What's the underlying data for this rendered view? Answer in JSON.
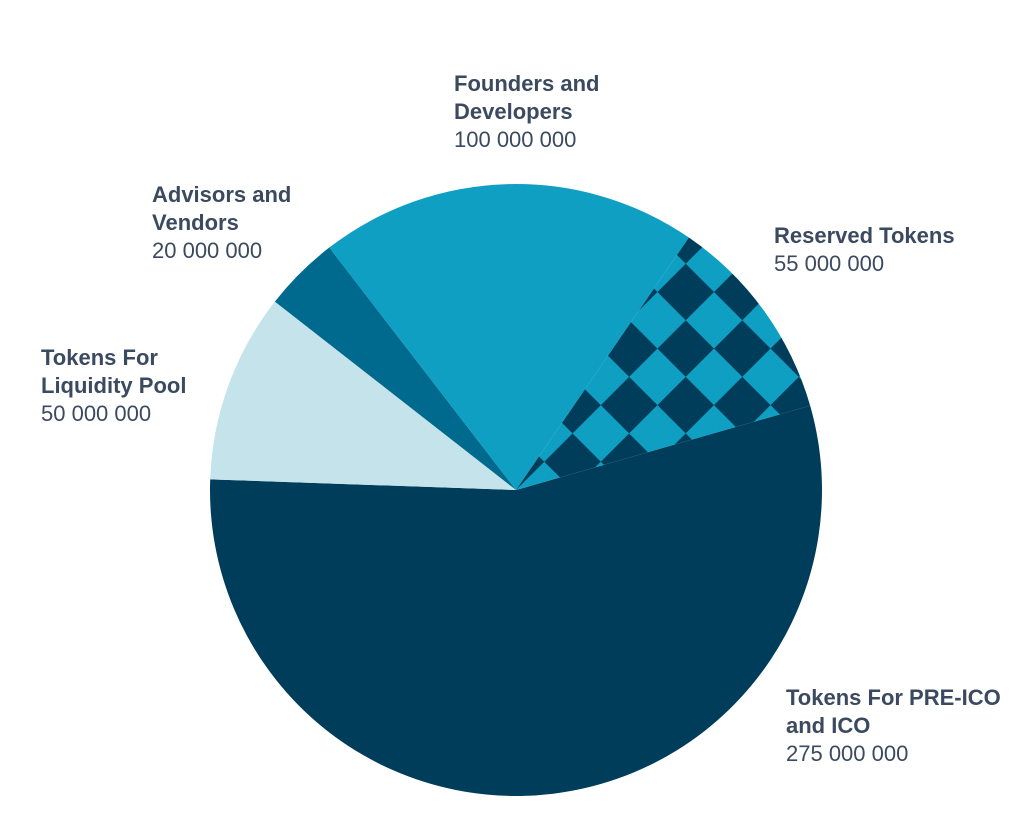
{
  "chart_data": {
    "type": "pie",
    "title": "",
    "total": 500000000,
    "slices": [
      {
        "label_lines": [
          "Tokens For PRE-ICO",
          "and ICO"
        ],
        "value": 275000000,
        "value_text": "275 000 000",
        "color": "#003d5a",
        "pattern": false
      },
      {
        "label_lines": [
          "Tokens For",
          "Liquidity Pool"
        ],
        "value": 50000000,
        "value_text": "50 000 000",
        "color": "#c4e3ea",
        "pattern": false
      },
      {
        "label_lines": [
          "Advisors and",
          "Vendors"
        ],
        "value": 20000000,
        "value_text": "20 000 000",
        "color": "#006a8e",
        "pattern": false
      },
      {
        "label_lines": [
          "Founders and",
          "Developers"
        ],
        "value": 100000000,
        "value_text": "100 000 000",
        "color": "#0e9fc3",
        "pattern": false
      },
      {
        "label_lines": [
          "Reserved Tokens"
        ],
        "value": 55000000,
        "value_text": "55 000 000",
        "color": "#0e9fc3",
        "pattern_color": "#003d5a",
        "pattern": true
      }
    ],
    "legend": "labels-outside"
  }
}
